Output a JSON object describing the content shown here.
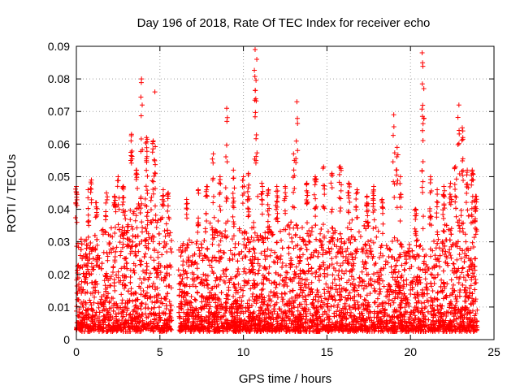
{
  "chart_data": {
    "type": "scatter",
    "title": "Day 196 of 2018, Rate Of TEC Index for receiver echo",
    "xlabel": "GPS time / hours",
    "ylabel": "ROTI / TECUs",
    "xlim": [
      0,
      25
    ],
    "ylim": [
      0,
      0.09
    ],
    "x_ticks": [
      "0",
      "5",
      "10",
      "15",
      "20",
      "25"
    ],
    "y_ticks": [
      "0",
      "0.01",
      "0.02",
      "0.03",
      "0.04",
      "0.05",
      "0.06",
      "0.07",
      "0.08",
      "0.09"
    ],
    "grid": true,
    "marker": "+",
    "series_color": "#ff0000",
    "data_gap": [
      5.7,
      6.1
    ],
    "envelope": [
      [
        0.0,
        0.03
      ],
      [
        0.5,
        0.032
      ],
      [
        1.0,
        0.03
      ],
      [
        1.5,
        0.036
      ],
      [
        2.0,
        0.034
      ],
      [
        2.5,
        0.037
      ],
      [
        3.0,
        0.04
      ],
      [
        3.5,
        0.042
      ],
      [
        4.0,
        0.046
      ],
      [
        4.5,
        0.044
      ],
      [
        5.0,
        0.038
      ],
      [
        5.7,
        0.034
      ],
      [
        6.1,
        0.028
      ],
      [
        6.5,
        0.032
      ],
      [
        7.0,
        0.03
      ],
      [
        7.5,
        0.032
      ],
      [
        8.0,
        0.036
      ],
      [
        8.5,
        0.038
      ],
      [
        9.0,
        0.036
      ],
      [
        9.5,
        0.034
      ],
      [
        10.0,
        0.035
      ],
      [
        10.5,
        0.037
      ],
      [
        11.0,
        0.035
      ],
      [
        11.5,
        0.033
      ],
      [
        12.0,
        0.036
      ],
      [
        12.5,
        0.038
      ],
      [
        13.0,
        0.036
      ],
      [
        13.5,
        0.037
      ],
      [
        14.0,
        0.035
      ],
      [
        14.5,
        0.036
      ],
      [
        15.0,
        0.034
      ],
      [
        15.5,
        0.036
      ],
      [
        16.0,
        0.035
      ],
      [
        16.5,
        0.037
      ],
      [
        17.0,
        0.036
      ],
      [
        17.5,
        0.038
      ],
      [
        18.0,
        0.034
      ],
      [
        18.5,
        0.03
      ],
      [
        19.0,
        0.032
      ],
      [
        19.5,
        0.03
      ],
      [
        20.0,
        0.028
      ],
      [
        20.5,
        0.03
      ],
      [
        21.0,
        0.031
      ],
      [
        21.5,
        0.03
      ],
      [
        22.0,
        0.036
      ],
      [
        22.5,
        0.04
      ],
      [
        23.0,
        0.04
      ],
      [
        23.5,
        0.038
      ],
      [
        24.0,
        0.036
      ]
    ],
    "spikes": [
      {
        "x": 0.0,
        "y": 0.047
      },
      {
        "x": 0.7,
        "y": 0.046
      },
      {
        "x": 0.9,
        "y": 0.049
      },
      {
        "x": 1.2,
        "y": 0.042
      },
      {
        "x": 1.8,
        "y": 0.045
      },
      {
        "x": 2.3,
        "y": 0.044
      },
      {
        "x": 2.5,
        "y": 0.05
      },
      {
        "x": 2.8,
        "y": 0.047
      },
      {
        "x": 3.3,
        "y": 0.063
      },
      {
        "x": 3.6,
        "y": 0.052
      },
      {
        "x": 3.9,
        "y": 0.08
      },
      {
        "x": 4.2,
        "y": 0.062
      },
      {
        "x": 4.6,
        "y": 0.061
      },
      {
        "x": 4.7,
        "y": 0.076
      },
      {
        "x": 5.2,
        "y": 0.046
      },
      {
        "x": 5.5,
        "y": 0.045
      },
      {
        "x": 6.6,
        "y": 0.043
      },
      {
        "x": 7.3,
        "y": 0.046
      },
      {
        "x": 7.8,
        "y": 0.047
      },
      {
        "x": 8.2,
        "y": 0.057
      },
      {
        "x": 8.6,
        "y": 0.05
      },
      {
        "x": 9.0,
        "y": 0.071
      },
      {
        "x": 9.4,
        "y": 0.052
      },
      {
        "x": 10.0,
        "y": 0.05
      },
      {
        "x": 10.3,
        "y": 0.051
      },
      {
        "x": 10.7,
        "y": 0.089
      },
      {
        "x": 10.8,
        "y": 0.086
      },
      {
        "x": 11.1,
        "y": 0.048
      },
      {
        "x": 11.5,
        "y": 0.046
      },
      {
        "x": 12.0,
        "y": 0.047
      },
      {
        "x": 12.5,
        "y": 0.047
      },
      {
        "x": 13.0,
        "y": 0.057
      },
      {
        "x": 13.2,
        "y": 0.073
      },
      {
        "x": 13.8,
        "y": 0.048
      },
      {
        "x": 14.3,
        "y": 0.05
      },
      {
        "x": 14.8,
        "y": 0.053
      },
      {
        "x": 15.3,
        "y": 0.051
      },
      {
        "x": 15.8,
        "y": 0.053
      },
      {
        "x": 16.3,
        "y": 0.048
      },
      {
        "x": 16.8,
        "y": 0.046
      },
      {
        "x": 17.4,
        "y": 0.044
      },
      {
        "x": 17.8,
        "y": 0.047
      },
      {
        "x": 18.3,
        "y": 0.043
      },
      {
        "x": 19.0,
        "y": 0.069
      },
      {
        "x": 19.2,
        "y": 0.059
      },
      {
        "x": 19.4,
        "y": 0.05
      },
      {
        "x": 20.3,
        "y": 0.04
      },
      {
        "x": 20.7,
        "y": 0.088
      },
      {
        "x": 20.8,
        "y": 0.077
      },
      {
        "x": 21.2,
        "y": 0.05
      },
      {
        "x": 21.6,
        "y": 0.046
      },
      {
        "x": 22.0,
        "y": 0.047
      },
      {
        "x": 22.4,
        "y": 0.048
      },
      {
        "x": 22.7,
        "y": 0.053
      },
      {
        "x": 22.9,
        "y": 0.072
      },
      {
        "x": 23.1,
        "y": 0.065
      },
      {
        "x": 23.4,
        "y": 0.052
      },
      {
        "x": 23.7,
        "y": 0.052
      },
      {
        "x": 23.9,
        "y": 0.044
      }
    ]
  }
}
